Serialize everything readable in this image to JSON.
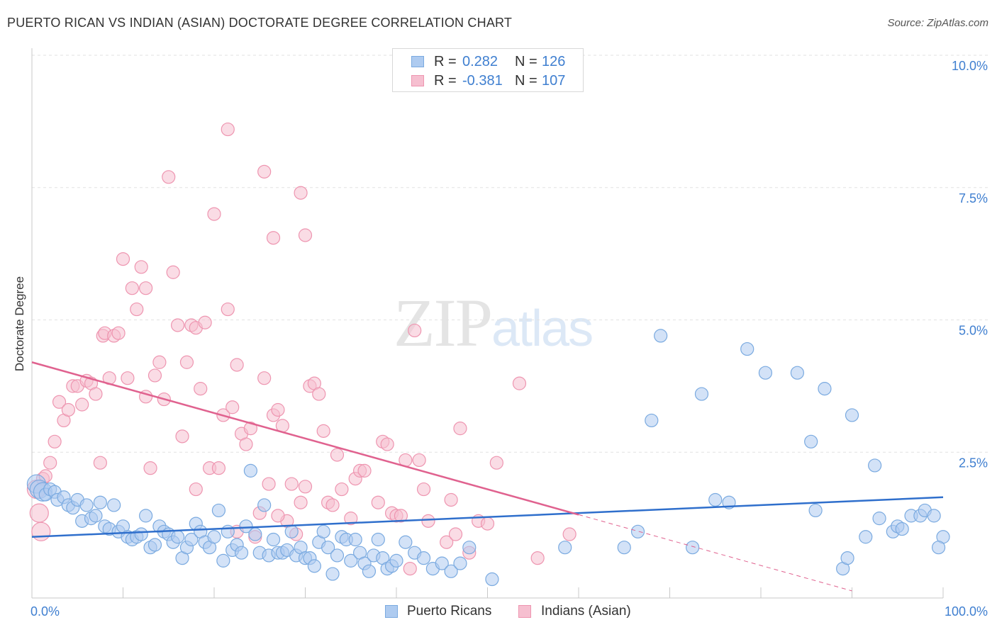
{
  "title": "PUERTO RICAN VS INDIAN (ASIAN) DOCTORATE DEGREE CORRELATION CHART",
  "source": "Source: ZipAtlas.com",
  "watermark": {
    "zip": "ZIP",
    "atlas": "atlas"
  },
  "legend": {
    "rows": [
      {
        "r_label": "R =",
        "r_value": "0.282",
        "n_label": "N =",
        "n_value": "126"
      },
      {
        "r_label": "R =",
        "r_value": "-0.381",
        "n_label": "N =",
        "n_value": "107"
      }
    ]
  },
  "bottom_legend": [
    "Puerto Ricans",
    "Indians (Asian)"
  ],
  "colors": {
    "blue_fill": "#aecbf0",
    "blue_stroke": "#7aaae0",
    "blue_line": "#2f6fcc",
    "pink_fill": "#f6bfd0",
    "pink_stroke": "#ee95b0",
    "pink_line": "#e0628f",
    "tick_label": "#3f7fd0"
  },
  "chart_data": {
    "type": "scatter",
    "title": "PUERTO RICAN VS INDIAN (ASIAN) DOCTORATE DEGREE CORRELATION CHART",
    "xlabel": "",
    "ylabel": "Doctorate Degree",
    "xlim": [
      0,
      100
    ],
    "ylim": [
      0,
      10
    ],
    "x_tick_labels": [
      "0.0%",
      "100.0%"
    ],
    "y_ticks": [
      2.5,
      5.0,
      7.5,
      10.0
    ],
    "y_tick_labels": [
      "2.5%",
      "5.0%",
      "7.5%",
      "10.0%"
    ],
    "grid": true,
    "legend_position": "top-center",
    "series": [
      {
        "name": "Puerto Ricans",
        "trend": {
          "x": [
            0,
            100
          ],
          "y": [
            0.9,
            1.65
          ],
          "dashed_from": null
        },
        "points": [
          [
            0.5,
            1.9
          ],
          [
            0.8,
            1.8
          ],
          [
            1.2,
            1.75
          ],
          [
            1.5,
            1.7
          ],
          [
            2.0,
            1.8
          ],
          [
            2.5,
            1.75
          ],
          [
            2.8,
            1.6
          ],
          [
            3.5,
            1.65
          ],
          [
            4.0,
            1.5
          ],
          [
            4.5,
            1.45
          ],
          [
            5.0,
            1.6
          ],
          [
            5.5,
            1.2
          ],
          [
            6.0,
            1.5
          ],
          [
            6.5,
            1.25
          ],
          [
            7.0,
            1.3
          ],
          [
            7.5,
            1.55
          ],
          [
            8.0,
            1.1
          ],
          [
            8.5,
            1.05
          ],
          [
            9.0,
            1.5
          ],
          [
            9.5,
            1.0
          ],
          [
            10.0,
            1.1
          ],
          [
            10.5,
            0.9
          ],
          [
            11.0,
            0.85
          ],
          [
            11.5,
            0.9
          ],
          [
            12.0,
            0.95
          ],
          [
            12.5,
            1.3
          ],
          [
            13.0,
            0.7
          ],
          [
            13.5,
            0.75
          ],
          [
            14.0,
            1.1
          ],
          [
            14.5,
            1.0
          ],
          [
            15.0,
            0.95
          ],
          [
            15.5,
            0.8
          ],
          [
            16.0,
            0.9
          ],
          [
            16.5,
            0.5
          ],
          [
            17.0,
            0.7
          ],
          [
            17.5,
            0.85
          ],
          [
            18.0,
            1.15
          ],
          [
            18.5,
            1.0
          ],
          [
            19.0,
            0.8
          ],
          [
            19.5,
            0.7
          ],
          [
            20.0,
            0.9
          ],
          [
            20.5,
            1.4
          ],
          [
            21.0,
            0.45
          ],
          [
            21.5,
            1.0
          ],
          [
            22.0,
            0.65
          ],
          [
            22.5,
            0.75
          ],
          [
            23.0,
            0.6
          ],
          [
            23.5,
            1.1
          ],
          [
            24.0,
            2.15
          ],
          [
            24.5,
            0.95
          ],
          [
            25.0,
            0.6
          ],
          [
            25.5,
            1.5
          ],
          [
            26.0,
            0.55
          ],
          [
            26.5,
            0.85
          ],
          [
            27.0,
            0.6
          ],
          [
            27.5,
            0.6
          ],
          [
            28.0,
            0.65
          ],
          [
            28.5,
            1.0
          ],
          [
            29.0,
            0.55
          ],
          [
            29.5,
            0.7
          ],
          [
            30.0,
            0.5
          ],
          [
            30.5,
            0.5
          ],
          [
            31.0,
            0.35
          ],
          [
            31.5,
            0.8
          ],
          [
            32.0,
            1.0
          ],
          [
            32.5,
            0.7
          ],
          [
            33.0,
            0.2
          ],
          [
            33.5,
            0.55
          ],
          [
            34.0,
            0.9
          ],
          [
            34.5,
            0.85
          ],
          [
            35.0,
            0.45
          ],
          [
            35.5,
            0.85
          ],
          [
            36.0,
            0.6
          ],
          [
            36.5,
            0.4
          ],
          [
            37.0,
            0.25
          ],
          [
            37.5,
            0.55
          ],
          [
            38.0,
            0.85
          ],
          [
            38.5,
            0.5
          ],
          [
            39.0,
            0.3
          ],
          [
            39.5,
            0.35
          ],
          [
            40.0,
            0.45
          ],
          [
            41.0,
            0.8
          ],
          [
            42.0,
            0.6
          ],
          [
            43.0,
            0.5
          ],
          [
            44.0,
            0.3
          ],
          [
            45.0,
            0.4
          ],
          [
            46.0,
            0.25
          ],
          [
            47.0,
            0.4
          ],
          [
            48.0,
            0.7
          ],
          [
            50.5,
            0.1
          ],
          [
            58.5,
            0.7
          ],
          [
            65.0,
            0.7
          ],
          [
            66.5,
            1.0
          ],
          [
            68.0,
            3.1
          ],
          [
            69.0,
            4.7
          ],
          [
            72.5,
            0.7
          ],
          [
            73.5,
            3.6
          ],
          [
            75.0,
            1.6
          ],
          [
            76.5,
            1.55
          ],
          [
            78.5,
            4.45
          ],
          [
            80.5,
            4.0
          ],
          [
            84.0,
            4.0
          ],
          [
            85.5,
            2.7
          ],
          [
            86.0,
            1.4
          ],
          [
            87.0,
            3.7
          ],
          [
            89.0,
            0.3
          ],
          [
            89.5,
            0.5
          ],
          [
            90.0,
            3.2
          ],
          [
            91.5,
            0.9
          ],
          [
            92.5,
            2.25
          ],
          [
            93.0,
            1.25
          ],
          [
            94.5,
            1.0
          ],
          [
            95.0,
            1.1
          ],
          [
            95.5,
            1.05
          ],
          [
            96.5,
            1.3
          ],
          [
            97.5,
            1.3
          ],
          [
            98.0,
            1.4
          ],
          [
            99.0,
            1.3
          ],
          [
            100.0,
            0.9
          ],
          [
            99.5,
            0.7
          ]
        ]
      },
      {
        "name": "Indians (Asian)",
        "trend": {
          "x": [
            0,
            100
          ],
          "y": [
            4.2,
            -0.6
          ],
          "dashed_from": 60.0
        },
        "points": [
          [
            0.5,
            1.8
          ],
          [
            0.8,
            1.35
          ],
          [
            1.0,
            1.0
          ],
          [
            1.2,
            2.0
          ],
          [
            1.5,
            2.05
          ],
          [
            2.0,
            2.3
          ],
          [
            2.5,
            2.7
          ],
          [
            3.0,
            3.45
          ],
          [
            3.5,
            3.1
          ],
          [
            4.0,
            3.3
          ],
          [
            4.5,
            3.75
          ],
          [
            5.0,
            3.75
          ],
          [
            5.5,
            3.4
          ],
          [
            6.0,
            3.85
          ],
          [
            6.5,
            3.8
          ],
          [
            7.0,
            3.6
          ],
          [
            7.5,
            2.3
          ],
          [
            7.8,
            4.7
          ],
          [
            8.0,
            4.75
          ],
          [
            8.5,
            3.9
          ],
          [
            9.0,
            4.7
          ],
          [
            9.5,
            4.75
          ],
          [
            10.0,
            6.15
          ],
          [
            10.5,
            3.9
          ],
          [
            11.0,
            5.6
          ],
          [
            11.5,
            5.2
          ],
          [
            12.0,
            6.0
          ],
          [
            12.5,
            5.6
          ],
          [
            13.0,
            2.2
          ],
          [
            13.5,
            3.95
          ],
          [
            14.0,
            4.2
          ],
          [
            14.5,
            3.5
          ],
          [
            15.0,
            7.7
          ],
          [
            15.5,
            5.9
          ],
          [
            16.0,
            4.9
          ],
          [
            16.5,
            2.8
          ],
          [
            17.0,
            4.2
          ],
          [
            17.5,
            4.9
          ],
          [
            18.0,
            4.85
          ],
          [
            18.5,
            3.7
          ],
          [
            19.0,
            4.95
          ],
          [
            19.5,
            2.2
          ],
          [
            20.0,
            7.0
          ],
          [
            20.5,
            2.2
          ],
          [
            21.0,
            3.2
          ],
          [
            21.5,
            5.2
          ],
          [
            22.0,
            3.35
          ],
          [
            22.5,
            4.15
          ],
          [
            23.0,
            2.85
          ],
          [
            23.5,
            2.65
          ],
          [
            24.0,
            2.95
          ],
          [
            24.5,
            0.9
          ],
          [
            25.0,
            1.35
          ],
          [
            25.5,
            3.9
          ],
          [
            26.0,
            1.9
          ],
          [
            26.5,
            3.2
          ],
          [
            27.0,
            3.3
          ],
          [
            27.5,
            3.0
          ],
          [
            28.0,
            1.2
          ],
          [
            28.5,
            1.9
          ],
          [
            29.0,
            0.95
          ],
          [
            29.5,
            1.55
          ],
          [
            30.0,
            1.85
          ],
          [
            30.5,
            3.75
          ],
          [
            31.0,
            3.8
          ],
          [
            31.5,
            3.6
          ],
          [
            32.0,
            2.9
          ],
          [
            32.5,
            1.55
          ],
          [
            33.0,
            1.5
          ],
          [
            33.5,
            2.45
          ],
          [
            21.5,
            8.6
          ],
          [
            25.5,
            7.8
          ],
          [
            29.5,
            7.4
          ],
          [
            26.5,
            6.55
          ],
          [
            30.0,
            6.6
          ],
          [
            34.0,
            1.8
          ],
          [
            35.0,
            1.25
          ],
          [
            35.5,
            2.0
          ],
          [
            36.0,
            2.15
          ],
          [
            36.5,
            2.15
          ],
          [
            38.0,
            1.55
          ],
          [
            38.5,
            2.7
          ],
          [
            39.0,
            2.65
          ],
          [
            39.5,
            1.35
          ],
          [
            40.0,
            1.3
          ],
          [
            40.5,
            1.3
          ],
          [
            41.0,
            2.35
          ],
          [
            41.5,
            0.3
          ],
          [
            42.0,
            4.8
          ],
          [
            42.5,
            2.35
          ],
          [
            43.0,
            1.8
          ],
          [
            43.5,
            1.2
          ],
          [
            45.5,
            0.8
          ],
          [
            46.0,
            1.6
          ],
          [
            46.5,
            0.95
          ],
          [
            47.0,
            2.95
          ],
          [
            48.0,
            0.6
          ],
          [
            49.0,
            1.2
          ],
          [
            50.0,
            1.15
          ],
          [
            51.0,
            2.3
          ],
          [
            53.5,
            3.8
          ],
          [
            55.5,
            0.5
          ],
          [
            59.0,
            0.95
          ],
          [
            12.5,
            3.55
          ],
          [
            18.0,
            1.8
          ],
          [
            22.5,
            1.0
          ],
          [
            27.0,
            1.3
          ]
        ]
      }
    ]
  }
}
